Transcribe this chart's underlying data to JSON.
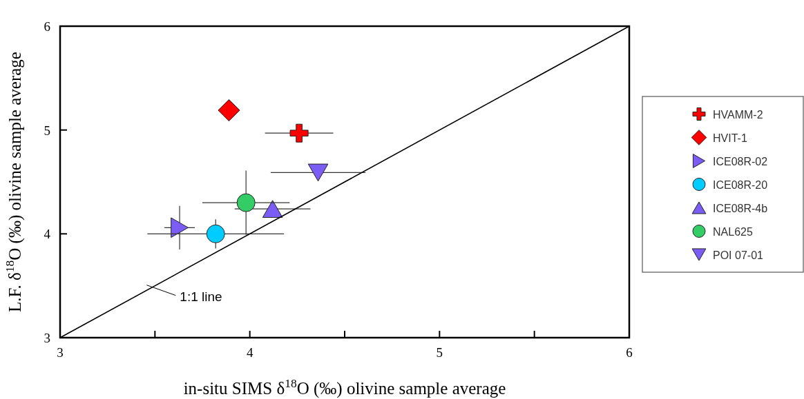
{
  "chart_data": {
    "type": "scatter",
    "xlabel": "in-situ SIMS δ$^{18}$O (‰) olivine sample average",
    "ylabel": "L.F. δ$^{18}$O (‰) olivine sample average",
    "xlim": [
      3,
      6
    ],
    "ylim": [
      3,
      6
    ],
    "xticks": [
      3,
      {
        "value": 3.5,
        "label": null
      },
      4,
      {
        "value": 4.5,
        "label": null
      },
      5,
      {
        "value": 5.5,
        "label": null
      },
      6
    ],
    "yticks": [
      3,
      4,
      5,
      6
    ],
    "grid": false,
    "legend": "right",
    "annotations": [
      {
        "text": "1:1 line",
        "x": 3.5,
        "y": 3.5
      }
    ],
    "series": [
      {
        "name": "HVAMM-2",
        "color": "#ff0000",
        "marker": "cross",
        "x": [
          4.26
        ],
        "values": [
          4.97
        ],
        "xerrors": [
          0.18
        ]
      },
      {
        "name": "HVIT-1",
        "color": "#ff0000",
        "marker": "diamond",
        "x": [
          3.89
        ],
        "values": [
          5.19
        ]
      },
      {
        "name": "ICE08R-02",
        "color": "#7b5cf5",
        "marker": "triangle-right",
        "x": [
          3.63
        ],
        "values": [
          4.06
        ],
        "xerrors": [
          0.08
        ],
        "errors": [
          0.21
        ]
      },
      {
        "name": "ICE08R-20",
        "color": "#00ccff",
        "marker": "circle",
        "x": [
          3.82
        ],
        "values": [
          4.0
        ],
        "xerrors": [
          0.36
        ],
        "errors": [
          0.14
        ]
      },
      {
        "name": "ICE08R-4b",
        "color": "#7b5cf5",
        "marker": "triangle",
        "x": [
          4.12
        ],
        "values": [
          4.24
        ],
        "xerrors": [
          0.2
        ]
      },
      {
        "name": "NAL625",
        "color": "#33cc66",
        "marker": "circle",
        "x": [
          3.98
        ],
        "values": [
          4.3
        ],
        "xerrors": [
          0.23
        ],
        "errors": [
          0.31
        ]
      },
      {
        "name": "POI 07-01",
        "color": "#7b5cf5",
        "marker": "triangle-down",
        "x": [
          4.36
        ],
        "values": [
          4.59
        ],
        "xerrors": [
          0.25
        ]
      },
      {
        "type": "line",
        "color": "#000000",
        "marker": "none",
        "x": [
          3,
          6
        ],
        "values": [
          3,
          6
        ]
      }
    ]
  }
}
